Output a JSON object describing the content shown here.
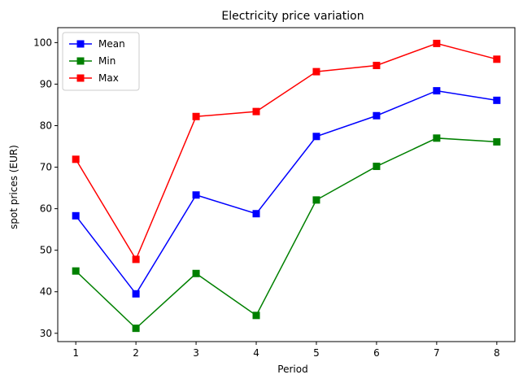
{
  "chart_data": {
    "type": "line",
    "title": "Electricity price variation",
    "xlabel": "Period",
    "ylabel": "spot prices (EUR)",
    "x": [
      1,
      2,
      3,
      4,
      5,
      6,
      7,
      8
    ],
    "xlim": [
      0.7,
      8.3
    ],
    "ylim": [
      28,
      103.6
    ],
    "yticks": [
      30,
      40,
      50,
      60,
      70,
      80,
      90,
      100
    ],
    "xticks": [
      1,
      2,
      3,
      4,
      5,
      6,
      7,
      8
    ],
    "grid": false,
    "legend_position": "top-left",
    "series": [
      {
        "name": "Mean",
        "color": "#0000ff",
        "marker": "square",
        "values": [
          58.3,
          39.5,
          63.3,
          58.8,
          77.4,
          82.4,
          88.4,
          86.1
        ]
      },
      {
        "name": "Min",
        "color": "#008000",
        "marker": "square",
        "values": [
          45.0,
          31.2,
          44.4,
          34.3,
          62.1,
          70.2,
          77.0,
          76.1
        ]
      },
      {
        "name": "Max",
        "color": "#ff0000",
        "marker": "square",
        "values": [
          71.9,
          47.8,
          82.2,
          83.4,
          93.0,
          94.5,
          99.8,
          96.0
        ]
      }
    ]
  }
}
